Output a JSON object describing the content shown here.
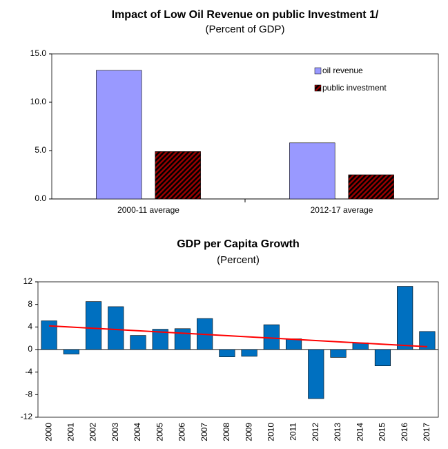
{
  "chart_data": [
    {
      "type": "bar",
      "title": "Impact of Low Oil Revenue on public Investment 1/",
      "subtitle": "(Percent of GDP)",
      "categories": [
        "2000-11 average",
        "2012-17 average"
      ],
      "series": [
        {
          "name": "oil revenue",
          "color": "#9999ff",
          "values": [
            13.3,
            5.8
          ]
        },
        {
          "name": "public investment",
          "color": "#990000",
          "hatch": true,
          "values": [
            4.9,
            2.5
          ]
        }
      ],
      "ylim": [
        0,
        15
      ],
      "yticks": [
        {
          "value": 0,
          "label": "0.0"
        },
        {
          "value": 5,
          "label": "5.0"
        },
        {
          "value": 10,
          "label": "10.0"
        },
        {
          "value": 15,
          "label": "15.0"
        }
      ],
      "legend": "top-right"
    },
    {
      "type": "bar",
      "title": "GDP per Capita Growth",
      "subtitle": "(Percent)",
      "categories": [
        "2000",
        "2001",
        "2002",
        "2003",
        "2004",
        "2005",
        "2006",
        "2007",
        "2008",
        "2009",
        "2010",
        "2011",
        "2012",
        "2013",
        "2014",
        "2015",
        "2016",
        "2017"
      ],
      "series": [
        {
          "color": "#0070c0",
          "values": [
            5.1,
            -0.8,
            8.5,
            7.6,
            2.5,
            3.6,
            3.7,
            5.5,
            -1.3,
            -1.2,
            4.4,
            1.9,
            -8.7,
            -1.4,
            1.2,
            -2.9,
            11.2,
            3.2
          ]
        }
      ],
      "trendline": {
        "color": "#ff0000",
        "values": [
          4.2,
          0.5
        ]
      },
      "ylim": [
        -12,
        12
      ],
      "yticks": [
        -12,
        -8,
        -4,
        0,
        4,
        8,
        12
      ],
      "rotate_labels": true
    }
  ]
}
